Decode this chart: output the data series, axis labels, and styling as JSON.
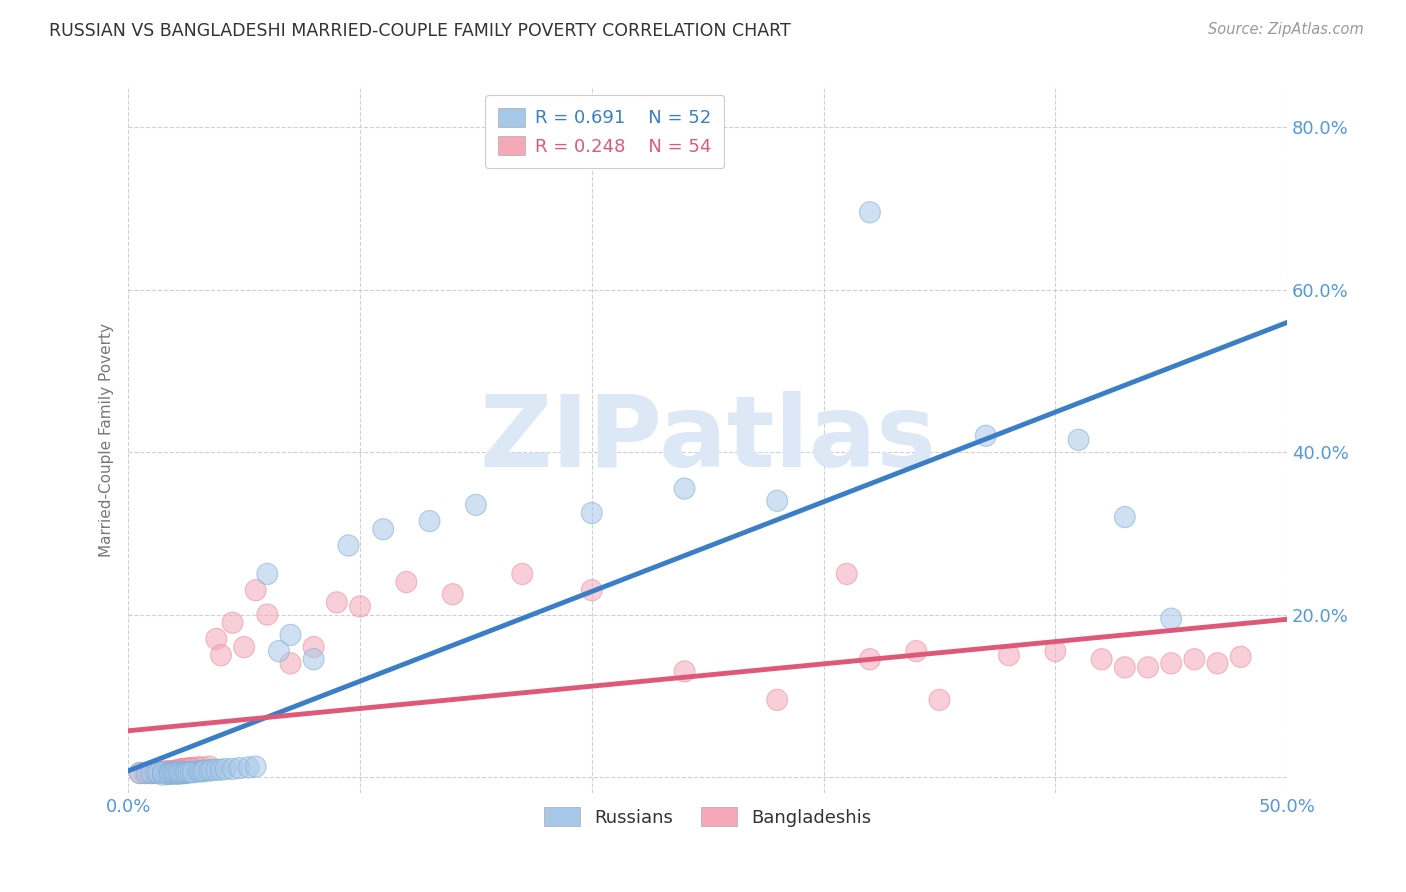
{
  "title": "RUSSIAN VS BANGLADESHI MARRIED-COUPLE FAMILY POVERTY CORRELATION CHART",
  "source": "Source: ZipAtlas.com",
  "ylabel": "Married-Couple Family Poverty",
  "xlim": [
    0.0,
    0.5
  ],
  "ylim": [
    -0.02,
    0.85
  ],
  "xticks": [
    0.0,
    0.1,
    0.2,
    0.3,
    0.4,
    0.5
  ],
  "xticklabels": [
    "0.0%",
    "",
    "",
    "",
    "",
    "50.0%"
  ],
  "yticks": [
    0.0,
    0.2,
    0.4,
    0.6,
    0.8
  ],
  "yticklabels": [
    "",
    "20.0%",
    "40.0%",
    "60.0%",
    "80.0%"
  ],
  "russian_color": "#a8c8e8",
  "bangladeshi_color": "#f4a8b8",
  "russian_edge_color": "#7aadd4",
  "bangladeshi_edge_color": "#e888a0",
  "russian_line_color": "#3a7ec8",
  "bangladeshi_line_color": "#e05878",
  "watermark_color": "#dce8f5",
  "watermark": "ZIPatlas",
  "background_color": "#ffffff",
  "grid_color": "#d0d0d0",
  "tick_color": "#5599dd",
  "russian_x": [
    0.005,
    0.008,
    0.01,
    0.012,
    0.013,
    0.015,
    0.015,
    0.017,
    0.018,
    0.018,
    0.019,
    0.02,
    0.02,
    0.021,
    0.022,
    0.022,
    0.023,
    0.024,
    0.025,
    0.025,
    0.026,
    0.027,
    0.028,
    0.03,
    0.031,
    0.032,
    0.033,
    0.035,
    0.036,
    0.038,
    0.04,
    0.042,
    0.045,
    0.048,
    0.052,
    0.055,
    0.06,
    0.065,
    0.07,
    0.08,
    0.095,
    0.11,
    0.13,
    0.15,
    0.2,
    0.24,
    0.28,
    0.32,
    0.37,
    0.41,
    0.43,
    0.45
  ],
  "russian_y": [
    0.005,
    0.005,
    0.005,
    0.005,
    0.005,
    0.003,
    0.006,
    0.004,
    0.004,
    0.005,
    0.005,
    0.004,
    0.006,
    0.005,
    0.004,
    0.006,
    0.005,
    0.005,
    0.005,
    0.006,
    0.006,
    0.006,
    0.006,
    0.007,
    0.007,
    0.007,
    0.008,
    0.008,
    0.009,
    0.009,
    0.009,
    0.01,
    0.01,
    0.011,
    0.012,
    0.013,
    0.25,
    0.155,
    0.175,
    0.145,
    0.285,
    0.305,
    0.315,
    0.335,
    0.325,
    0.355,
    0.34,
    0.695,
    0.42,
    0.415,
    0.32,
    0.195
  ],
  "bangladeshi_x": [
    0.005,
    0.007,
    0.009,
    0.01,
    0.011,
    0.012,
    0.013,
    0.014,
    0.015,
    0.016,
    0.017,
    0.018,
    0.019,
    0.02,
    0.021,
    0.022,
    0.023,
    0.024,
    0.025,
    0.026,
    0.027,
    0.028,
    0.03,
    0.032,
    0.035,
    0.038,
    0.04,
    0.045,
    0.05,
    0.055,
    0.06,
    0.07,
    0.08,
    0.09,
    0.1,
    0.12,
    0.14,
    0.17,
    0.2,
    0.24,
    0.28,
    0.31,
    0.32,
    0.34,
    0.35,
    0.38,
    0.4,
    0.42,
    0.43,
    0.44,
    0.45,
    0.46,
    0.47,
    0.48
  ],
  "bangladeshi_y": [
    0.005,
    0.005,
    0.006,
    0.005,
    0.006,
    0.006,
    0.006,
    0.007,
    0.006,
    0.007,
    0.007,
    0.007,
    0.007,
    0.008,
    0.008,
    0.009,
    0.01,
    0.01,
    0.01,
    0.011,
    0.011,
    0.011,
    0.012,
    0.012,
    0.013,
    0.17,
    0.15,
    0.19,
    0.16,
    0.23,
    0.2,
    0.14,
    0.16,
    0.215,
    0.21,
    0.24,
    0.225,
    0.25,
    0.23,
    0.13,
    0.095,
    0.25,
    0.145,
    0.155,
    0.095,
    0.15,
    0.155,
    0.145,
    0.135,
    0.135,
    0.14,
    0.145,
    0.14,
    0.148
  ]
}
